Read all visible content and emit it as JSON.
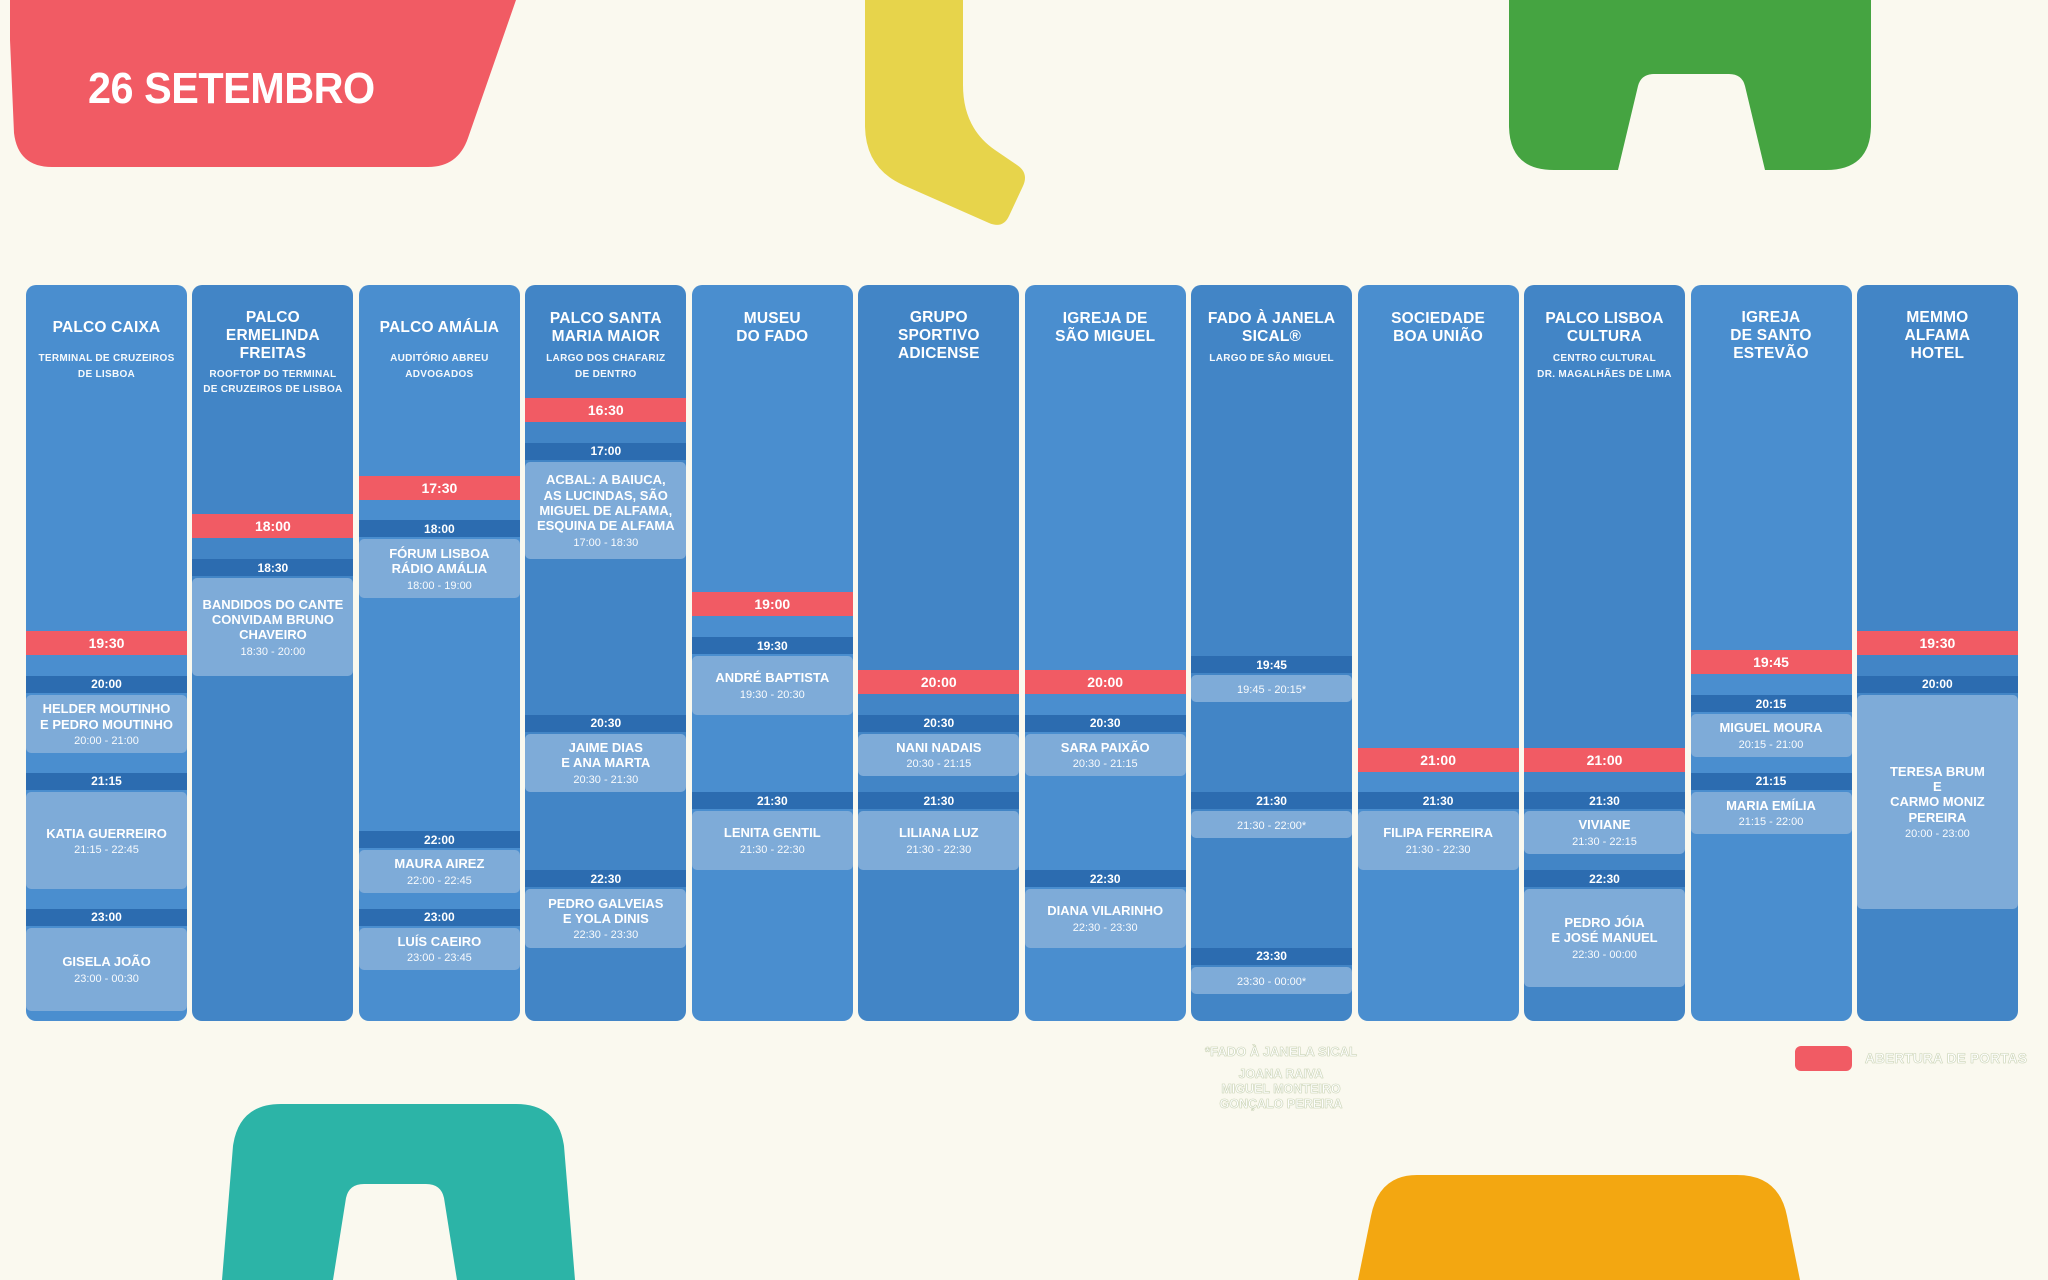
{
  "page": {
    "date_title": "26 SETEMBRO",
    "background_color": "#FAF9EF"
  },
  "colors": {
    "red": "#F15B64",
    "column_light": "#4A8ECF",
    "column_dark": "#4285C6",
    "time_band": "#2C6CB0",
    "event_block": "#7EABD8",
    "decor_yellow": "#E7D44B",
    "decor_green": "#45A441",
    "decor_teal": "#2CB4A7",
    "decor_amber": "#F3A711",
    "text": "#FFFFFF"
  },
  "legend": {
    "doors_label": "ABERTURA DE PORTAS"
  },
  "footnote": {
    "lines": [
      "*FADO À JANELA SICAL",
      "JOANA RAIVA",
      "MIGUEL MONTEIRO",
      "GONÇALO PEREIRA"
    ]
  },
  "schedule": {
    "venues": [
      {
        "title": "PALCO CAIXA",
        "subtitle": "TERMINAL DE CRUZEIROS\nDE LISBOA",
        "doors_open": "19:30",
        "events": [
          {
            "time": "20:00",
            "artist": "HELDER MOUTINHO\nE PEDRO MOUTINHO",
            "range": "20:00 - 21:00"
          },
          {
            "time": "21:15",
            "artist": "KATIA GUERREIRO",
            "range": "21:15 - 22:45"
          },
          {
            "time": "23:00",
            "artist": "GISELA JOÃO",
            "range": "23:00 - 00:30"
          }
        ]
      },
      {
        "title": "PALCO ERMELINDA\nFREITAS",
        "subtitle": "ROOFTOP DO TERMINAL\nDE CRUZEIROS DE LISBOA",
        "doors_open": "18:00",
        "events": [
          {
            "time": "18:30",
            "artist": "BANDIDOS DO CANTE\nCONVIDAM BRUNO\nCHAVEIRO",
            "range": "18:30 - 20:00"
          }
        ]
      },
      {
        "title": "PALCO AMÁLIA",
        "subtitle": "AUDITÓRIO ABREU\nADVOGADOS",
        "doors_open": "17:30",
        "events": [
          {
            "time": "18:00",
            "artist": "FÓRUM LISBOA\nRÁDIO AMÁLIA",
            "range": "18:00 - 19:00"
          },
          {
            "time": "22:00",
            "artist": "MAURA AIREZ",
            "range": "22:00 - 22:45"
          },
          {
            "time": "23:00",
            "artist": "LUÍS CAEIRO",
            "range": "23:00 - 23:45"
          }
        ]
      },
      {
        "title": "PALCO SANTA\nMARIA MAIOR",
        "subtitle": "LARGO DOS CHAFARIZ\nDE DENTRO",
        "doors_open": "16:30",
        "events": [
          {
            "time": "17:00",
            "artist": "ACBAL: A BAIUCA,\nAS LUCINDAS, SÃO\nMIGUEL DE ALFAMA,\nESQUINA DE ALFAMA",
            "range": "17:00 - 18:30"
          },
          {
            "time": "20:30",
            "artist": "JAIME DIAS\nE ANA MARTA",
            "range": "20:30 - 21:30"
          },
          {
            "time": "22:30",
            "artist": "PEDRO GALVEIAS\nE YOLA DINIS",
            "range": "22:30 - 23:30"
          }
        ]
      },
      {
        "title": "MUSEU\nDO FADO",
        "subtitle": "",
        "doors_open": "19:00",
        "events": [
          {
            "time": "19:30",
            "artist": "ANDRÉ BAPTISTA",
            "range": "19:30 - 20:30"
          },
          {
            "time": "21:30",
            "artist": "LENITA GENTIL",
            "range": "21:30 - 22:30"
          }
        ]
      },
      {
        "title": "GRUPO\nSPORTIVO\nADICENSE",
        "subtitle": "",
        "doors_open": "20:00",
        "events": [
          {
            "time": "20:30",
            "artist": "NANI NADAIS",
            "range": "20:30 - 21:15"
          },
          {
            "time": "21:30",
            "artist": "LILIANA LUZ",
            "range": "21:30 - 22:30"
          }
        ]
      },
      {
        "title": "IGREJA DE\nSÃO MIGUEL",
        "subtitle": "",
        "doors_open": "20:00",
        "events": [
          {
            "time": "20:30",
            "artist": "SARA PAIXÃO",
            "range": "20:30 - 21:15"
          },
          {
            "time": "22:30",
            "artist": "DIANA VILARINHO",
            "range": "22:30 - 23:30"
          }
        ]
      },
      {
        "title": "FADO À JANELA\nSICAL®",
        "subtitle": "LARGO DE SÃO MIGUEL",
        "doors_open": null,
        "events": [
          {
            "time": "19:45",
            "artist": "",
            "range": "19:45 - 20:15*"
          },
          {
            "time": "21:30",
            "artist": "",
            "range": "21:30 - 22:00*"
          },
          {
            "time": "23:30",
            "artist": "",
            "range": "23:30 - 00:00*"
          }
        ]
      },
      {
        "title": "SOCIEDADE\nBOA UNIÃO",
        "subtitle": "",
        "doors_open": "21:00",
        "events": [
          {
            "time": "21:30",
            "artist": "FILIPA FERREIRA",
            "range": "21:30 - 22:30"
          }
        ]
      },
      {
        "title": "PALCO LISBOA\nCULTURA",
        "subtitle": "CENTRO CULTURAL\nDR. MAGALHÃES DE LIMA",
        "doors_open": "21:00",
        "events": [
          {
            "time": "21:30",
            "artist": "VIVIANE",
            "range": "21:30 - 22:15"
          },
          {
            "time": "22:30",
            "artist": "PEDRO JÓIA\nE JOSÉ MANUEL",
            "range": "22:30 - 00:00"
          }
        ]
      },
      {
        "title": "IGREJA\nDE SANTO\nESTEVÃO",
        "subtitle": "",
        "doors_open": "19:45",
        "events": [
          {
            "time": "20:15",
            "artist": "MIGUEL MOURA",
            "range": "20:15 - 21:00"
          },
          {
            "time": "21:15",
            "artist": "MARIA EMÍLIA",
            "range": "21:15 - 22:00"
          }
        ]
      },
      {
        "title": "MEMMO\nALFAMA\nHOTEL",
        "subtitle": "",
        "doors_open": "19:30",
        "events": [
          {
            "time": "20:00",
            "artist": "TERESA BRUM\nE\nCARMO MONIZ\nPEREIRA",
            "range": "20:00 - 23:00"
          }
        ]
      }
    ]
  }
}
